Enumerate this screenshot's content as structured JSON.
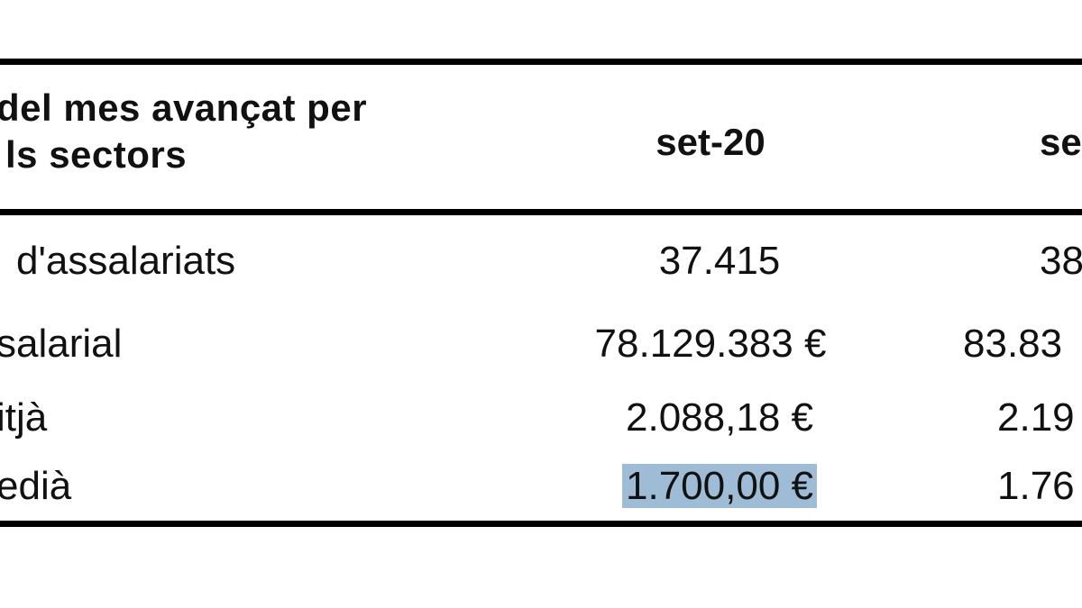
{
  "table": {
    "header": {
      "label_line1": "del mes avançat per",
      "label_line2": "ls sectors",
      "col1": "set-20",
      "col2": "se"
    },
    "rows": [
      {
        "label": "d'assalariats",
        "v1": "37.415",
        "v2": "38"
      },
      {
        "label": "salarial",
        "v1": "78.129.383 €",
        "v2": "83.83"
      },
      {
        "label": "itjà",
        "v1": "2.088,18 €",
        "v2": "2.19"
      },
      {
        "label": "edià",
        "v1": "1.700,00 €",
        "v2": "1.76"
      }
    ],
    "highlight_color": "#9fbcd6"
  }
}
